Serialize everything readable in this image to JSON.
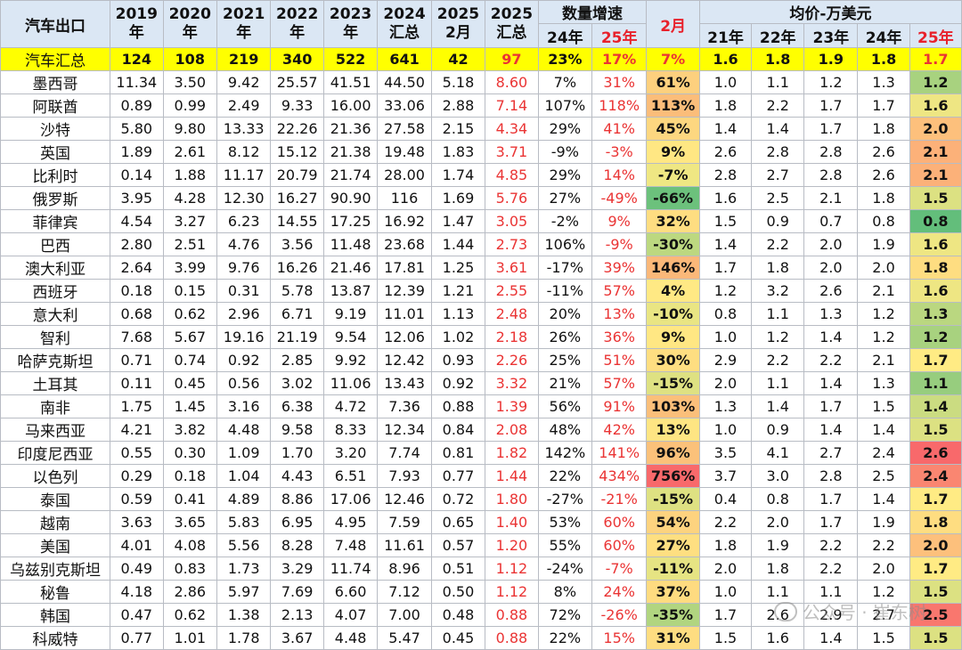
{
  "header": {
    "title": "汽车出口",
    "years": [
      {
        "top": "2019",
        "bottom": "年"
      },
      {
        "top": "2020",
        "bottom": "年"
      },
      {
        "top": "2021",
        "bottom": "年"
      },
      {
        "top": "2022",
        "bottom": "年"
      },
      {
        "top": "2023",
        "bottom": "年"
      },
      {
        "top": "2024",
        "bottom": "汇总"
      },
      {
        "top": "2025",
        "bottom": "2月"
      },
      {
        "top": "2025",
        "bottom": "汇总"
      }
    ],
    "growth_group": "数量增速",
    "growth_cols": [
      "24年",
      "25年",
      "2月"
    ],
    "price_group": "均价-万美元",
    "price_cols": [
      "21年",
      "22年",
      "23年",
      "24年",
      "25年"
    ]
  },
  "chart_data": {
    "type": "table",
    "total": {
      "name": "汽车汇总",
      "volumes": [
        "124",
        "108",
        "219",
        "340",
        "522",
        "641",
        "42",
        "97"
      ],
      "growth": [
        "23%",
        "17%",
        "7%"
      ],
      "prices": [
        "1.6",
        "1.8",
        "1.9",
        "1.8",
        "1.7"
      ]
    },
    "rows": [
      {
        "name": "墨西哥",
        "volumes": [
          "11.34",
          "3.50",
          "9.42",
          "25.57",
          "41.51",
          "44.50",
          "5.18",
          "8.60"
        ],
        "growth": [
          "7%",
          "31%",
          "61%"
        ],
        "prices": [
          "1.0",
          "1.1",
          "1.2",
          "1.3",
          "1.2"
        ]
      },
      {
        "name": "阿联酋",
        "volumes": [
          "0.89",
          "0.99",
          "2.49",
          "9.33",
          "16.00",
          "33.06",
          "2.88",
          "7.14"
        ],
        "growth": [
          "107%",
          "118%",
          "113%"
        ],
        "prices": [
          "1.8",
          "2.2",
          "1.7",
          "1.7",
          "1.6"
        ]
      },
      {
        "name": "沙特",
        "volumes": [
          "5.80",
          "9.80",
          "13.33",
          "22.26",
          "21.36",
          "27.58",
          "2.15",
          "4.34"
        ],
        "growth": [
          "29%",
          "41%",
          "45%"
        ],
        "prices": [
          "1.4",
          "1.4",
          "1.7",
          "1.8",
          "2.0"
        ]
      },
      {
        "name": "英国",
        "volumes": [
          "1.89",
          "2.61",
          "8.12",
          "15.12",
          "21.38",
          "19.48",
          "1.83",
          "3.71"
        ],
        "growth": [
          "-9%",
          "-3%",
          "9%"
        ],
        "prices": [
          "2.6",
          "2.8",
          "2.8",
          "2.6",
          "2.1"
        ]
      },
      {
        "name": "比利时",
        "volumes": [
          "0.14",
          "1.88",
          "11.17",
          "20.79",
          "21.74",
          "28.00",
          "1.74",
          "4.85"
        ],
        "growth": [
          "29%",
          "14%",
          "-7%"
        ],
        "prices": [
          "2.8",
          "2.7",
          "2.8",
          "2.6",
          "2.1"
        ]
      },
      {
        "name": "俄罗斯",
        "volumes": [
          "3.95",
          "4.28",
          "12.30",
          "16.27",
          "90.90",
          "116",
          "1.69",
          "5.76"
        ],
        "growth": [
          "27%",
          "-49%",
          "-66%"
        ],
        "prices": [
          "1.6",
          "2.5",
          "2.1",
          "1.8",
          "1.5"
        ]
      },
      {
        "name": "菲律宾",
        "volumes": [
          "4.54",
          "3.27",
          "6.23",
          "14.55",
          "17.25",
          "16.92",
          "1.47",
          "3.05"
        ],
        "growth": [
          "-2%",
          "9%",
          "32%"
        ],
        "prices": [
          "1.5",
          "0.9",
          "0.7",
          "0.8",
          "0.8"
        ]
      },
      {
        "name": "巴西",
        "volumes": [
          "2.80",
          "2.51",
          "4.76",
          "3.56",
          "11.48",
          "23.68",
          "1.44",
          "2.73"
        ],
        "growth": [
          "106%",
          "-9%",
          "-30%"
        ],
        "prices": [
          "1.4",
          "2.2",
          "2.0",
          "1.9",
          "1.6"
        ]
      },
      {
        "name": "澳大利亚",
        "volumes": [
          "2.64",
          "3.99",
          "9.76",
          "16.26",
          "21.46",
          "17.81",
          "1.25",
          "3.61"
        ],
        "growth": [
          "-17%",
          "39%",
          "146%"
        ],
        "prices": [
          "1.7",
          "1.8",
          "2.0",
          "2.0",
          "1.8"
        ]
      },
      {
        "name": "西班牙",
        "volumes": [
          "0.18",
          "0.15",
          "0.31",
          "5.78",
          "13.87",
          "12.39",
          "1.21",
          "2.55"
        ],
        "growth": [
          "-11%",
          "57%",
          "4%"
        ],
        "prices": [
          "1.2",
          "3.2",
          "2.6",
          "2.1",
          "1.6"
        ]
      },
      {
        "name": "意大利",
        "volumes": [
          "0.68",
          "0.62",
          "2.96",
          "6.71",
          "9.19",
          "11.01",
          "1.13",
          "2.48"
        ],
        "growth": [
          "20%",
          "13%",
          "-10%"
        ],
        "prices": [
          "0.8",
          "1.1",
          "1.3",
          "1.2",
          "1.3"
        ]
      },
      {
        "name": "智利",
        "volumes": [
          "7.68",
          "5.67",
          "19.16",
          "21.19",
          "9.54",
          "12.06",
          "1.02",
          "2.18"
        ],
        "growth": [
          "26%",
          "36%",
          "9%"
        ],
        "prices": [
          "1.0",
          "1.2",
          "1.4",
          "1.2",
          "1.2"
        ]
      },
      {
        "name": "哈萨克斯坦",
        "volumes": [
          "0.71",
          "0.74",
          "0.92",
          "2.85",
          "9.92",
          "12.42",
          "0.93",
          "2.26"
        ],
        "growth": [
          "25%",
          "51%",
          "30%"
        ],
        "prices": [
          "2.9",
          "2.2",
          "2.2",
          "2.1",
          "1.7"
        ]
      },
      {
        "name": "土耳其",
        "volumes": [
          "0.11",
          "0.45",
          "0.56",
          "3.02",
          "11.06",
          "13.43",
          "0.92",
          "3.32"
        ],
        "growth": [
          "21%",
          "57%",
          "-15%"
        ],
        "prices": [
          "2.0",
          "1.1",
          "1.4",
          "1.3",
          "1.1"
        ]
      },
      {
        "name": "南非",
        "volumes": [
          "1.75",
          "1.45",
          "3.16",
          "6.38",
          "4.72",
          "7.36",
          "0.88",
          "1.39"
        ],
        "growth": [
          "56%",
          "91%",
          "103%"
        ],
        "prices": [
          "1.3",
          "1.4",
          "1.7",
          "1.5",
          "1.4"
        ]
      },
      {
        "name": "马来西亚",
        "volumes": [
          "4.21",
          "3.82",
          "4.48",
          "9.58",
          "8.33",
          "12.34",
          "0.84",
          "2.08"
        ],
        "growth": [
          "48%",
          "42%",
          "13%"
        ],
        "prices": [
          "1.0",
          "0.9",
          "1.4",
          "1.4",
          "1.5"
        ]
      },
      {
        "name": "印度尼西亚",
        "volumes": [
          "0.55",
          "0.30",
          "1.09",
          "1.70",
          "3.20",
          "7.74",
          "0.81",
          "1.82"
        ],
        "growth": [
          "142%",
          "141%",
          "96%"
        ],
        "prices": [
          "3.5",
          "4.1",
          "2.7",
          "2.4",
          "2.6"
        ]
      },
      {
        "name": "以色列",
        "volumes": [
          "0.29",
          "0.18",
          "1.04",
          "4.43",
          "6.51",
          "7.93",
          "0.77",
          "1.44"
        ],
        "growth": [
          "22%",
          "434%",
          "756%"
        ],
        "prices": [
          "3.7",
          "3.0",
          "2.8",
          "2.5",
          "2.4"
        ]
      },
      {
        "name": "泰国",
        "volumes": [
          "0.59",
          "0.41",
          "4.89",
          "8.86",
          "17.06",
          "12.46",
          "0.72",
          "1.80"
        ],
        "growth": [
          "-27%",
          "-21%",
          "-15%"
        ],
        "prices": [
          "0.4",
          "0.8",
          "1.7",
          "1.4",
          "1.7"
        ]
      },
      {
        "name": "越南",
        "volumes": [
          "3.63",
          "3.65",
          "5.83",
          "6.95",
          "4.95",
          "7.59",
          "0.65",
          "1.40"
        ],
        "growth": [
          "53%",
          "60%",
          "54%"
        ],
        "prices": [
          "2.2",
          "2.0",
          "1.7",
          "1.9",
          "1.8"
        ]
      },
      {
        "name": "美国",
        "volumes": [
          "4.01",
          "4.08",
          "5.56",
          "8.28",
          "7.48",
          "11.61",
          "0.57",
          "1.20"
        ],
        "growth": [
          "55%",
          "60%",
          "27%"
        ],
        "prices": [
          "1.8",
          "1.9",
          "2.2",
          "2.2",
          "2.0"
        ]
      },
      {
        "name": "乌兹别克斯坦",
        "volumes": [
          "0.49",
          "0.83",
          "1.73",
          "3.29",
          "11.74",
          "8.96",
          "0.51",
          "1.12"
        ],
        "growth": [
          "-24%",
          "-7%",
          "-11%"
        ],
        "prices": [
          "2.0",
          "1.8",
          "2.2",
          "2.0",
          "1.7"
        ]
      },
      {
        "name": "秘鲁",
        "volumes": [
          "4.18",
          "2.86",
          "5.97",
          "7.69",
          "6.60",
          "7.12",
          "0.50",
          "1.12"
        ],
        "growth": [
          "8%",
          "24%",
          "37%"
        ],
        "prices": [
          "1.0",
          "1.1",
          "1.1",
          "1.2",
          "1.5"
        ]
      },
      {
        "name": "韩国",
        "volumes": [
          "0.47",
          "0.62",
          "1.38",
          "2.13",
          "4.07",
          "7.00",
          "0.48",
          "0.88"
        ],
        "growth": [
          "72%",
          "-26%",
          "-35%"
        ],
        "prices": [
          "1.7",
          "2.6",
          "2.9",
          "2.7",
          "2.5"
        ]
      },
      {
        "name": "科威特",
        "volumes": [
          "0.77",
          "1.01",
          "1.78",
          "3.67",
          "4.48",
          "5.47",
          "0.45",
          "0.88"
        ],
        "growth": [
          "22%",
          "15%",
          "31%"
        ],
        "prices": [
          "1.5",
          "1.6",
          "1.4",
          "1.5",
          "1.5"
        ]
      }
    ]
  },
  "watermark": {
    "text": "公众号 · 崔东树",
    "icon": "wechat-icon"
  },
  "colors": {
    "header_bg": "#dbe7f4",
    "total_bg": "#ffff00",
    "red_text": "#e8212b",
    "scale_low": "#63be7b",
    "scale_mid": "#ffeb84",
    "scale_high": "#f8696b"
  }
}
